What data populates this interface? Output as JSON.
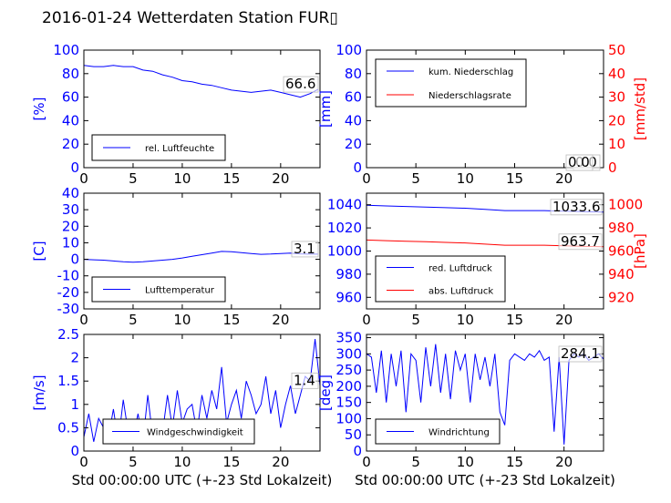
{
  "page_title": "2016-01-24 Wetterdaten Station FUR▯",
  "colors": {
    "primary_axis": "#0000ff",
    "secondary_axis": "#ff0000",
    "line_blue": "#0000ff",
    "line_red": "#ff0000"
  },
  "chart_data": [
    {
      "type": "line",
      "ylabel": "[%]",
      "xlabel": "",
      "xlim": [
        0,
        24
      ],
      "ylim": [
        0,
        100
      ],
      "xticks": [
        0,
        5,
        10,
        15,
        20
      ],
      "yticks": [
        0,
        20,
        40,
        60,
        80,
        100
      ],
      "legend": {
        "placement": "lower-left",
        "entries": [
          "rel. Luftfeuchte"
        ]
      },
      "annotations": [
        "66.6"
      ],
      "series": [
        {
          "name": "rel. Luftfeuchte",
          "color": "#0000ff",
          "x": [
            0,
            1,
            2,
            3,
            4,
            5,
            6,
            7,
            8,
            9,
            10,
            11,
            12,
            13,
            14,
            15,
            16,
            17,
            18,
            19,
            20,
            21,
            22,
            23,
            23.8
          ],
          "y": [
            87,
            86,
            86,
            87,
            86,
            86,
            83,
            82,
            79,
            77,
            74,
            73,
            71,
            70,
            68,
            66,
            65,
            64,
            65,
            66,
            64,
            62,
            60,
            63,
            66.6
          ]
        }
      ]
    },
    {
      "type": "line",
      "ylabel": "[mm]",
      "ylabel2": "[mm/std]",
      "xlabel": "",
      "xlim": [
        0,
        24
      ],
      "ylim": [
        0,
        100
      ],
      "ylim2": [
        0,
        50
      ],
      "xticks": [
        0,
        5,
        10,
        15,
        20
      ],
      "yticks": [
        0,
        20,
        40,
        60,
        80,
        100
      ],
      "yticks2": [
        0,
        10,
        20,
        30,
        40,
        50
      ],
      "legend": {
        "placement": "upper-left",
        "entries": [
          "kum. Niederschlag",
          "Niederschlagsrate"
        ]
      },
      "annotations": [
        "0.0",
        "0.0"
      ],
      "series": [
        {
          "name": "kum. Niederschlag",
          "color": "#0000ff",
          "x": [
            0,
            24
          ],
          "y": [
            0,
            0
          ]
        },
        {
          "name": "Niederschlagsrate",
          "color": "#ff0000",
          "axis": "right",
          "x": [
            0,
            24
          ],
          "y": [
            0,
            0
          ]
        }
      ]
    },
    {
      "type": "line",
      "ylabel": "[C]",
      "xlabel": "",
      "xlim": [
        0,
        24
      ],
      "ylim": [
        -30,
        40
      ],
      "xticks": [
        0,
        5,
        10,
        15,
        20
      ],
      "yticks": [
        -30,
        -20,
        -10,
        0,
        10,
        20,
        30,
        40
      ],
      "legend": {
        "placement": "lower-left",
        "entries": [
          "Lufttemperatur"
        ]
      },
      "annotations": [
        "3.1"
      ],
      "series": [
        {
          "name": "Lufttemperatur",
          "color": "#0000ff",
          "x": [
            0,
            1,
            2,
            3,
            4,
            5,
            6,
            7,
            8,
            9,
            10,
            11,
            12,
            13,
            14,
            15,
            16,
            17,
            18,
            19,
            20,
            21,
            22,
            23,
            23.8
          ],
          "y": [
            0,
            -0.3,
            -0.5,
            -1,
            -1.5,
            -1.8,
            -1.5,
            -1,
            -0.5,
            0,
            0.8,
            1.8,
            2.8,
            3.8,
            4.8,
            4.6,
            4,
            3.5,
            3,
            3.2,
            3.5,
            3.8,
            3.3,
            3.1,
            3.1
          ]
        }
      ]
    },
    {
      "type": "line",
      "ylabel": "",
      "ylabel2": "[hPa]",
      "xlabel": "",
      "xlim": [
        0,
        24
      ],
      "ylim": [
        950,
        1050
      ],
      "ylim2": [
        910,
        1010
      ],
      "xticks": [
        0,
        5,
        10,
        15,
        20
      ],
      "yticks": [
        960,
        980,
        1000,
        1020,
        1040
      ],
      "yticks2": [
        920,
        940,
        960,
        980,
        1000
      ],
      "legend": {
        "placement": "lower-left",
        "entries": [
          "red. Luftdruck",
          "abs. Luftdruck"
        ]
      },
      "annotations": [
        "1033.6",
        "963.7"
      ],
      "series": [
        {
          "name": "red. Luftdruck",
          "color": "#0000ff",
          "x": [
            0,
            2,
            4,
            6,
            8,
            10,
            12,
            14,
            16,
            18,
            20,
            22,
            24
          ],
          "y": [
            1039.5,
            1039,
            1038.5,
            1038,
            1037.5,
            1037,
            1036,
            1035,
            1035,
            1035,
            1034.5,
            1034,
            1033.6
          ]
        },
        {
          "name": "abs. Luftdruck",
          "color": "#ff0000",
          "axis": "right",
          "x": [
            0,
            2,
            4,
            6,
            8,
            10,
            12,
            14,
            16,
            18,
            20,
            22,
            24
          ],
          "y": [
            969.5,
            969,
            968.5,
            968,
            967.5,
            967,
            966,
            965,
            965,
            965,
            964.5,
            964,
            963.7
          ]
        }
      ]
    },
    {
      "type": "line",
      "ylabel": "[m/s]",
      "xlabel": "Std 00:00:00 UTC (+-23 Std Lokalzeit)",
      "xlim": [
        0,
        24
      ],
      "ylim": [
        0,
        2.5
      ],
      "xticks": [
        0,
        5,
        10,
        15,
        20
      ],
      "yticks": [
        0.0,
        0.5,
        1.0,
        1.5,
        2.0,
        2.5
      ],
      "legend": {
        "placement": "lower-center",
        "entries": [
          "Windgeschwindigkeit"
        ]
      },
      "annotations": [
        "1.4"
      ],
      "series": [
        {
          "name": "Windgeschwindigkeit",
          "color": "#0000ff",
          "x": [
            0,
            0.5,
            1,
            1.5,
            2,
            2.5,
            3,
            3.5,
            4,
            4.5,
            5,
            5.5,
            6,
            6.5,
            7,
            7.5,
            8,
            8.5,
            9,
            9.5,
            10,
            10.5,
            11,
            11.5,
            12,
            12.5,
            13,
            13.5,
            14,
            14.5,
            15,
            15.5,
            16,
            16.5,
            17,
            17.5,
            18,
            18.5,
            19,
            19.5,
            20,
            20.5,
            21,
            21.5,
            22,
            22.5,
            23,
            23.5,
            24
          ],
          "y": [
            0.3,
            0.8,
            0.2,
            0.7,
            0.5,
            0.3,
            0.9,
            0.2,
            1.1,
            0.4,
            0.3,
            0.8,
            0.2,
            1.2,
            0.3,
            0.5,
            0.4,
            1.2,
            0.5,
            1.3,
            0.6,
            0.9,
            1.0,
            0.4,
            1.2,
            0.7,
            1.3,
            0.9,
            1.8,
            0.6,
            1.0,
            1.3,
            0.7,
            1.5,
            1.2,
            0.8,
            1.0,
            1.6,
            0.8,
            1.3,
            0.5,
            1.0,
            1.4,
            0.8,
            1.2,
            1.6,
            1.5,
            2.4,
            1.4
          ]
        }
      ]
    },
    {
      "type": "line",
      "ylabel": "[deg]",
      "xlabel": "Std 00:00:00 UTC (+-23 Std Lokalzeit)",
      "xlim": [
        0,
        24
      ],
      "ylim": [
        0,
        360
      ],
      "xticks": [
        0,
        5,
        10,
        15,
        20
      ],
      "yticks": [
        0,
        50,
        100,
        150,
        200,
        250,
        300,
        350
      ],
      "legend": {
        "placement": "lower-left",
        "entries": [
          "Windrichtung"
        ]
      },
      "annotations": [
        "284.1"
      ],
      "series": [
        {
          "name": "Windrichtung",
          "color": "#0000ff",
          "x": [
            0,
            0.5,
            1,
            1.5,
            2,
            2.5,
            3,
            3.5,
            4,
            4.5,
            5,
            5.5,
            6,
            6.5,
            7,
            7.5,
            8,
            8.5,
            9,
            9.5,
            10,
            10.5,
            11,
            11.5,
            12,
            12.5,
            13,
            13.5,
            14,
            14.5,
            15,
            15.5,
            16,
            16.5,
            17,
            17.5,
            18,
            18.5,
            19,
            19.5,
            20,
            20.5,
            21,
            21.5,
            22,
            22.5,
            23,
            23.5,
            24
          ],
          "y": [
            300,
            290,
            180,
            310,
            150,
            300,
            200,
            310,
            120,
            300,
            280,
            150,
            320,
            200,
            330,
            180,
            300,
            160,
            310,
            250,
            300,
            150,
            300,
            220,
            290,
            200,
            300,
            120,
            80,
            280,
            300,
            290,
            280,
            300,
            290,
            310,
            280,
            290,
            60,
            290,
            20,
            280,
            300,
            290,
            300,
            280,
            290,
            300,
            284.1
          ]
        }
      ]
    }
  ]
}
